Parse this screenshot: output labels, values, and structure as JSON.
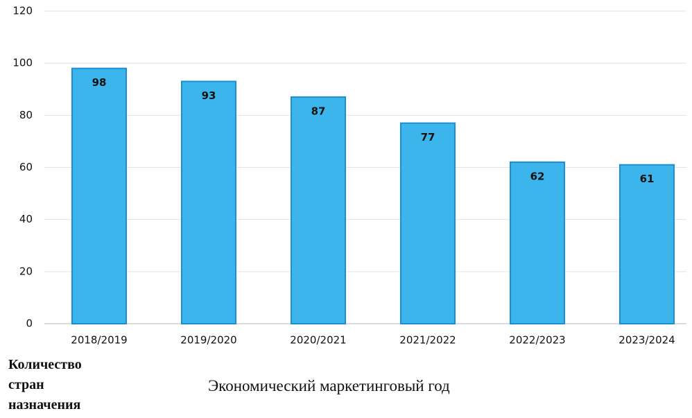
{
  "chart_data": {
    "type": "bar",
    "x_label": "Экономический маркетинговый год",
    "y_label": "Количество стран назначения",
    "categories": [
      "2018/2019",
      "2019/2020",
      "2020/2021",
      "2021/2022",
      "2022/2023",
      "2023/2024"
    ],
    "values": [
      98,
      93,
      87,
      77,
      62,
      61
    ],
    "color": "#3cb4ec",
    "edge_color": "#1b8fd2",
    "ylim": [
      0,
      120
    ],
    "yticks": [
      0,
      20,
      40,
      60,
      80,
      100,
      120
    ],
    "grid": true
  }
}
